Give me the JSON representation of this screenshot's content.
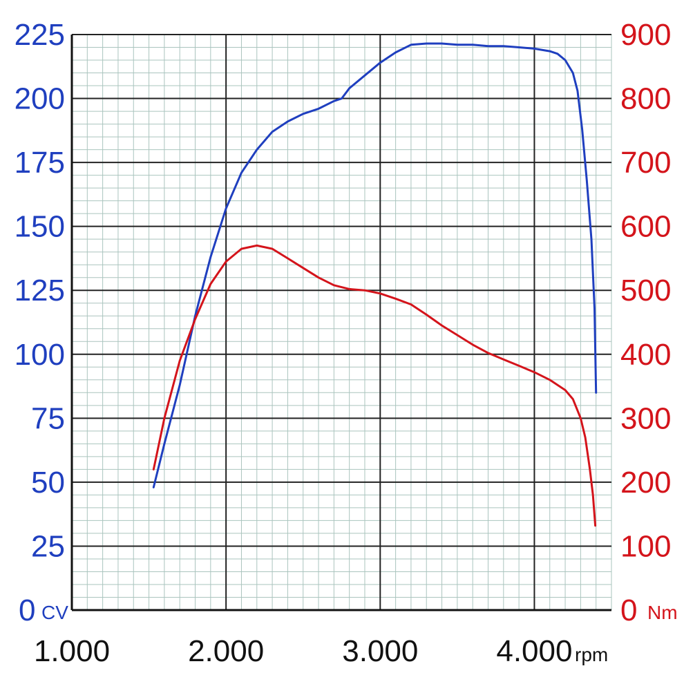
{
  "chart_data": {
    "type": "line",
    "xlabel": "rpm",
    "xlim": [
      1000,
      4500
    ],
    "x_ticks": [
      {
        "value": 1000,
        "label": "1.000"
      },
      {
        "value": 2000,
        "label": "2.000"
      },
      {
        "value": 3000,
        "label": "3.000"
      },
      {
        "value": 4000,
        "label": "4.000"
      }
    ],
    "y_left": {
      "unit": "CV",
      "lim": [
        0,
        225
      ],
      "ticks": [
        0,
        25,
        50,
        75,
        100,
        125,
        150,
        175,
        200,
        225
      ],
      "color": "#1f3fbf"
    },
    "y_right": {
      "unit": "Nm",
      "lim": [
        0,
        900
      ],
      "ticks": [
        0,
        100,
        200,
        300,
        400,
        500,
        600,
        700,
        800,
        900
      ],
      "color": "#d4141b"
    },
    "grid": true,
    "series": [
      {
        "axis": "left",
        "color": "#1f3fbf",
        "x": [
          1530,
          1600,
          1700,
          1800,
          1900,
          2000,
          2100,
          2200,
          2300,
          2400,
          2500,
          2600,
          2700,
          2750,
          2800,
          2900,
          3000,
          3100,
          3200,
          3300,
          3400,
          3500,
          3600,
          3700,
          3800,
          3900,
          4000,
          4100,
          4150,
          4200,
          4250,
          4280,
          4310,
          4340,
          4370,
          4390,
          4400
        ],
        "values": [
          48,
          65,
          88,
          115,
          138,
          157,
          171,
          180,
          187,
          191,
          194,
          196,
          199,
          200,
          204,
          209,
          214,
          218,
          221,
          221.5,
          221.5,
          221,
          221,
          220.5,
          220.5,
          220,
          219.5,
          218.5,
          217.5,
          215,
          210,
          203,
          188,
          168,
          145,
          118,
          85
        ]
      },
      {
        "axis": "right",
        "color": "#d4141b",
        "x": [
          1530,
          1600,
          1700,
          1800,
          1900,
          2000,
          2100,
          2200,
          2300,
          2400,
          2500,
          2600,
          2700,
          2800,
          2900,
          3000,
          3100,
          3200,
          3300,
          3400,
          3500,
          3600,
          3700,
          3800,
          3900,
          4000,
          4100,
          4200,
          4250,
          4300,
          4330,
          4360,
          4380,
          4395
        ],
        "values": [
          220,
          300,
          390,
          455,
          510,
          545,
          565,
          570,
          565,
          550,
          535,
          520,
          508,
          502,
          500,
          495,
          487,
          478,
          462,
          445,
          430,
          415,
          402,
          392,
          382,
          372,
          360,
          344,
          330,
          300,
          270,
          220,
          180,
          132
        ]
      }
    ]
  }
}
